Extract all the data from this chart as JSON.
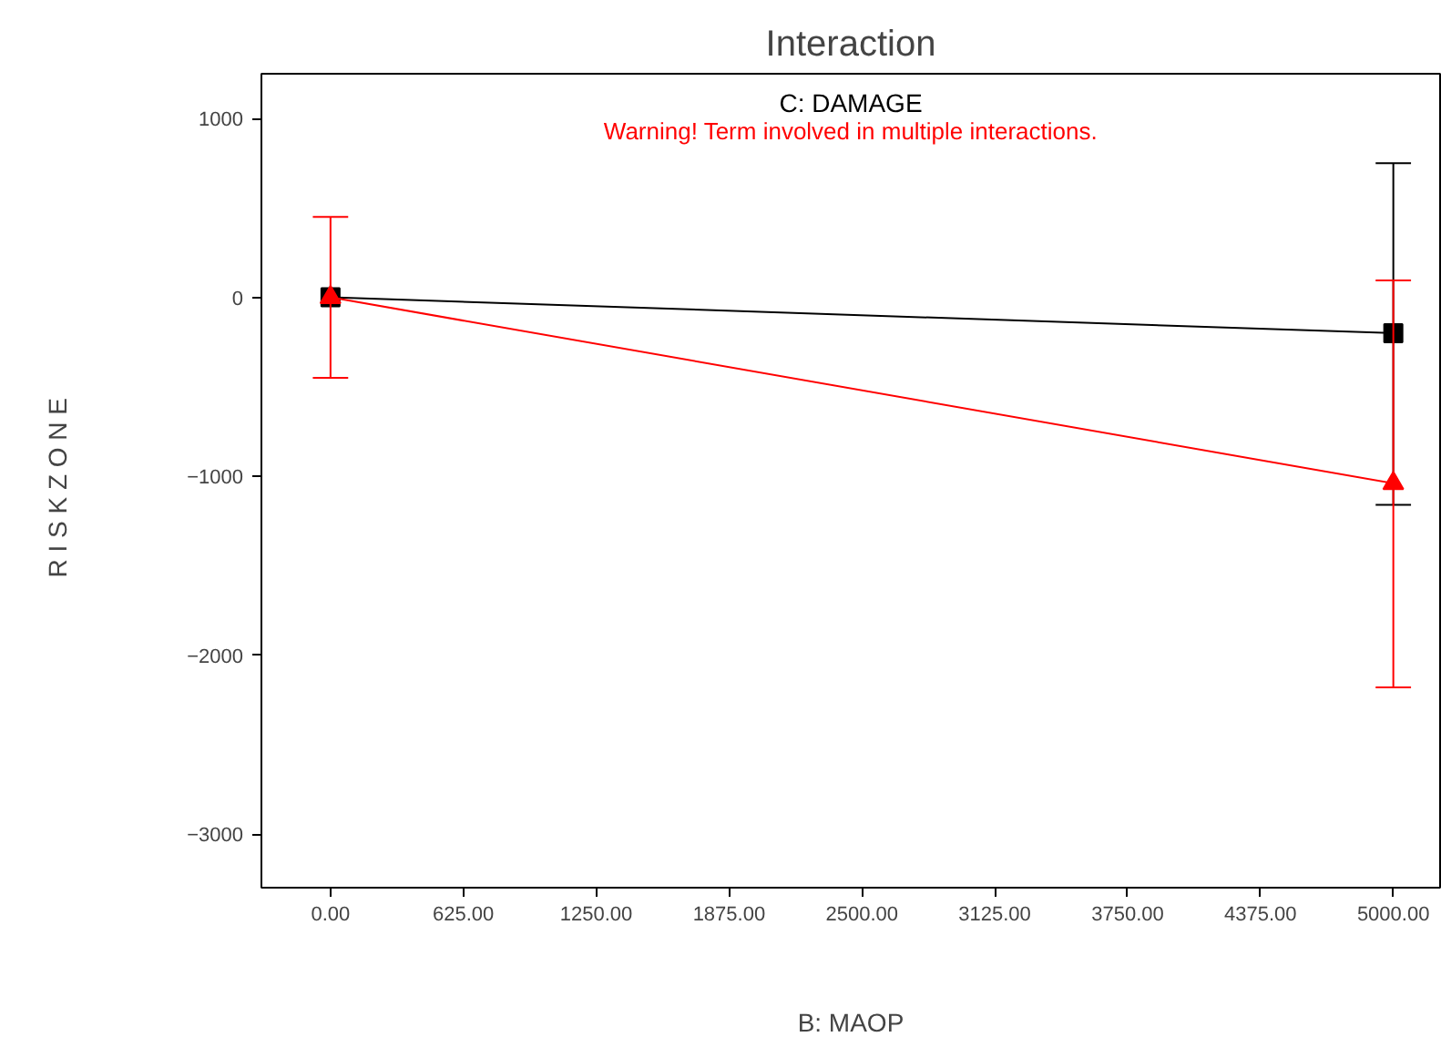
{
  "chart_data": {
    "type": "line",
    "title": "Interaction",
    "xlabel": "B: MAOP",
    "ylabel": "R I S K   Z O N E",
    "annotations": [
      "C: DAMAGE",
      "Warning! Term involved in multiple interactions."
    ],
    "x": [
      0,
      5000
    ],
    "series": [
      {
        "color": "#000000",
        "marker": "square",
        "values": [
          0,
          -200
        ],
        "errors": [
          null,
          [
            -1160,
            750
          ]
        ]
      },
      {
        "color": "#ff0000",
        "marker": "triangle",
        "values": [
          0,
          -1040
        ],
        "errors": [
          [
            -450,
            450
          ],
          [
            -2180,
            95
          ]
        ]
      }
    ],
    "xlim": [
      -325,
      5220
    ],
    "ylim": [
      -3300,
      1250
    ],
    "xticks": [
      {
        "value": 0,
        "label": "0.00"
      },
      {
        "value": 625,
        "label": "625.00"
      },
      {
        "value": 1250,
        "label": "1250.00"
      },
      {
        "value": 1875,
        "label": "1875.00"
      },
      {
        "value": 2500,
        "label": "2500.00"
      },
      {
        "value": 3125,
        "label": "3125.00"
      },
      {
        "value": 3750,
        "label": "3750.00"
      },
      {
        "value": 4375,
        "label": "4375.00"
      },
      {
        "value": 5000,
        "label": "5000.00"
      }
    ],
    "yticks": [
      -3000,
      -2000,
      -1000,
      0,
      1000
    ],
    "grid": false,
    "line_style": "solid"
  }
}
